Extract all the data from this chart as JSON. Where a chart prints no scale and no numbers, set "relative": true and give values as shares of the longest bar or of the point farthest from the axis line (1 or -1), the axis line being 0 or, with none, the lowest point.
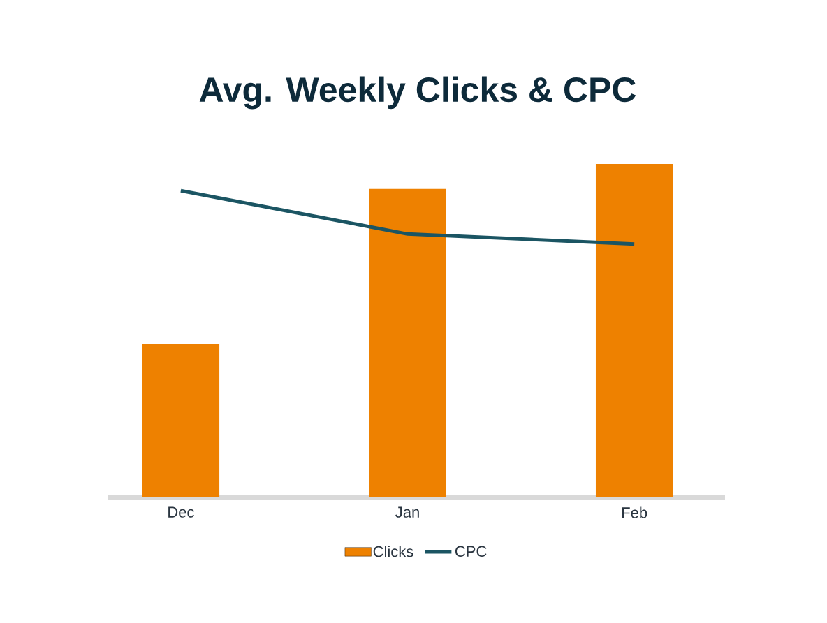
{
  "chart_data": {
    "type": "bar",
    "title": "Avg. Weekly Clicks & CPC",
    "relative": true,
    "categories": [
      "Dec",
      "Jan",
      "Feb"
    ],
    "series": [
      {
        "name": "Clicks",
        "color": "#ee8100",
        "values": [
          0.46,
          0.925,
          1
        ]
      },
      {
        "name": "CPC",
        "type": "line",
        "color": "#1b5563",
        "values": [
          0.92,
          0.79,
          0.76
        ]
      }
    ],
    "legend": "bottom"
  }
}
